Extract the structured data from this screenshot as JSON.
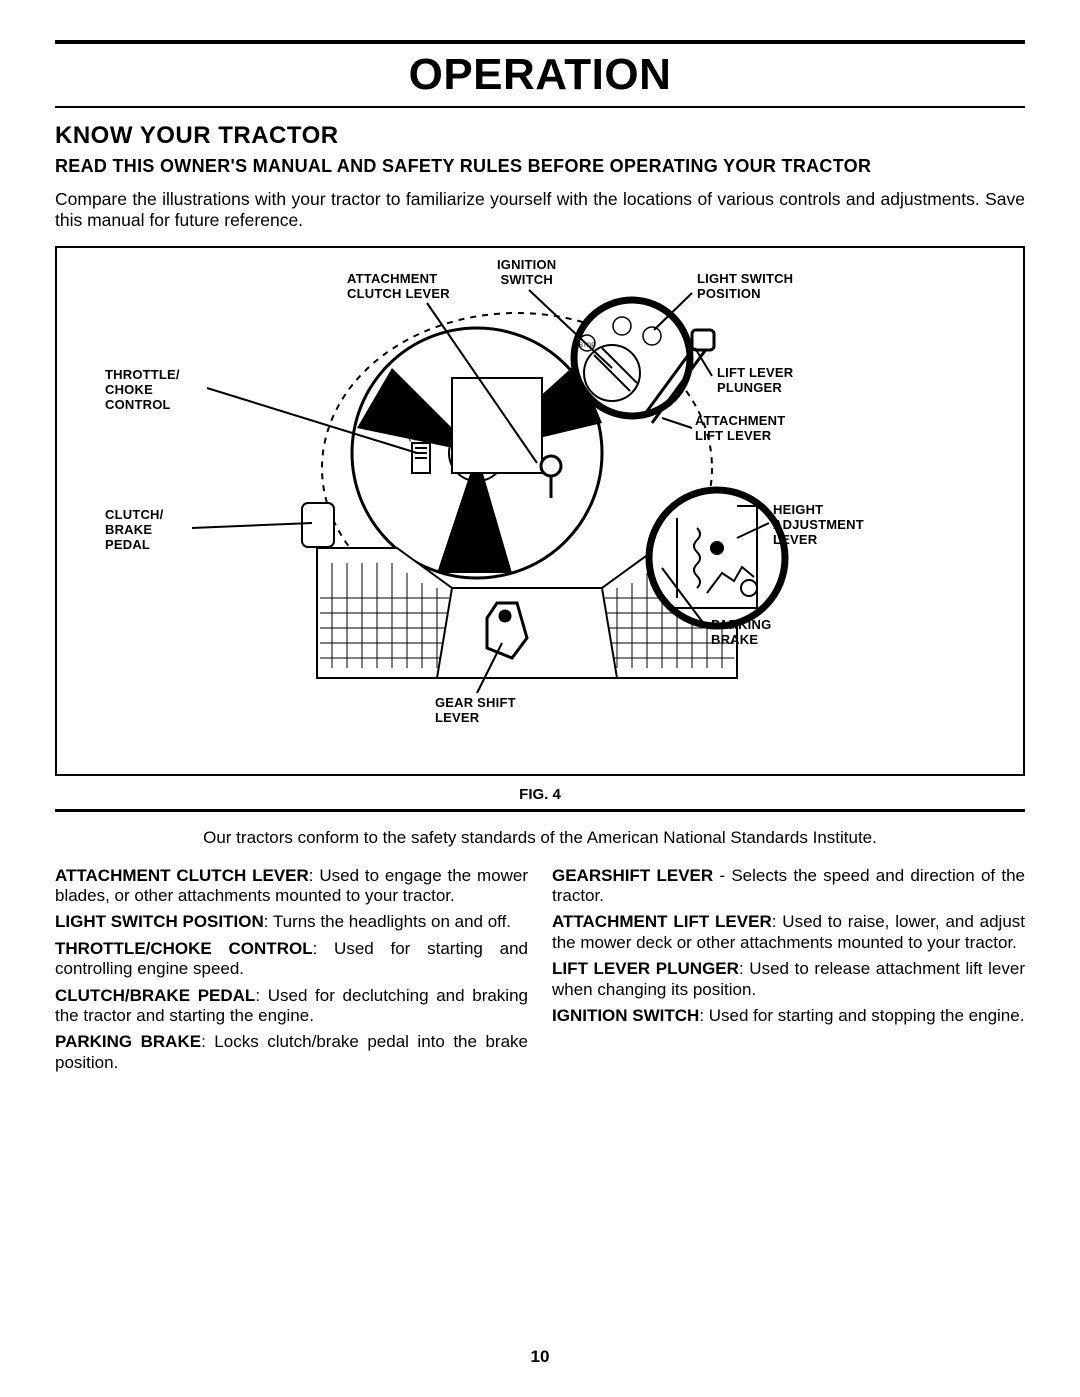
{
  "page_title": "OPERATION",
  "section_title": "KNOW YOUR TRACTOR",
  "subhead": "READ THIS OWNER'S MANUAL AND SAFETY RULES BEFORE OPERATING YOUR TRACTOR",
  "intro": "Compare the illustrations with your tractor to familiarize yourself with the locations of various controls and adjustments. Save this manual for future reference.",
  "labels": {
    "ignition_switch": "IGNITION\nSWITCH",
    "attachment_clutch_lever": "ATTACHMENT\nCLUTCH LEVER",
    "light_switch_position": "LIGHT SWITCH\nPOSITION",
    "throttle_choke": "THROTTLE/\nCHOKE\nCONTROL",
    "lift_lever_plunger": "LIFT LEVER\nPLUNGER",
    "attachment_lift_lever": "ATTACHMENT\nLIFT LEVER",
    "clutch_brake_pedal": "CLUTCH/\nBRAKE\nPEDAL",
    "height_adjustment_lever": "HEIGHT\nADJUSTMENT\nLEVER",
    "parking_brake": "PARKING\nBRAKE",
    "gear_shift_lever": "GEAR SHIFT\nLEVER"
  },
  "fig_caption": "FIG. 4",
  "standards_note": "Our tractors conform to the safety standards of the American National Standards Institute.",
  "definitions_left": [
    {
      "term": "ATTACHMENT CLUTCH LEVER",
      "text": ":  Used to engage the mower blades, or other attachments mounted to your tractor."
    },
    {
      "term": "LIGHT SWITCH POSITION",
      "text": ":  Turns the headlights on and off."
    },
    {
      "term": "THROTTLE/CHOKE CONTROL",
      "text": ":  Used for starting and controlling engine speed."
    },
    {
      "term": "CLUTCH/BRAKE PEDAL",
      "text": ":  Used for declutching and braking the tractor and starting the engine."
    },
    {
      "term": "PARKING BRAKE",
      "text": ": Locks clutch/brake pedal into the brake position."
    }
  ],
  "definitions_right": [
    {
      "term": "GEARSHIFT  LEVER",
      "text": " - Selects the speed and direction of the tractor."
    },
    {
      "term": "ATTACHMENT LIFT LEVER",
      "text": ":  Used to raise, lower, and adjust the mower deck or other attachments mounted to your tractor."
    },
    {
      "term": "LIFT LEVER PLUNGER",
      "text": ":  Used to release attachment lift lever when changing its position."
    },
    {
      "term": "IGNITION SWITCH",
      "text": ":  Used for starting and stopping the engine."
    }
  ],
  "page_number": "10",
  "colors": {
    "line": "#000000",
    "fill_black": "#000000",
    "fill_white": "#ffffff"
  }
}
